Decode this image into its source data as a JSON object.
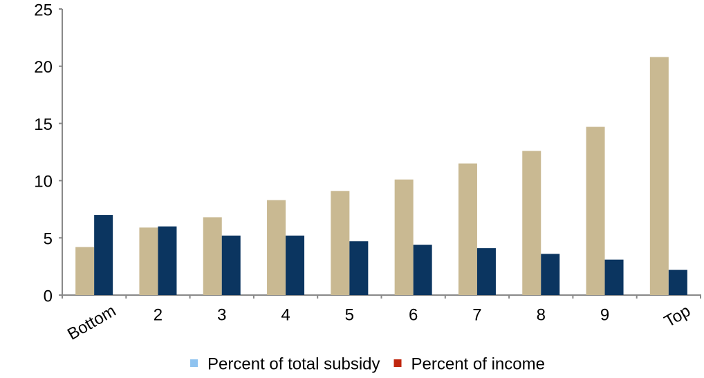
{
  "chart_data": {
    "type": "bar",
    "categories": [
      "Bottom",
      "2",
      "3",
      "4",
      "5",
      "6",
      "7",
      "8",
      "9",
      "Top"
    ],
    "series": [
      {
        "name": "Percent of total subsidy",
        "color": "#c9b992",
        "legend_color": "#8fc3f0",
        "values": [
          4.2,
          5.9,
          6.8,
          8.3,
          9.1,
          10.1,
          11.5,
          12.6,
          14.7,
          20.8
        ]
      },
      {
        "name": "Percent of income",
        "color": "#0b3560",
        "legend_color": "#c0260e",
        "values": [
          7.0,
          6.0,
          5.2,
          5.2,
          4.7,
          4.4,
          4.1,
          3.6,
          3.1,
          2.2
        ]
      }
    ],
    "ylim": [
      0,
      25
    ],
    "yticks": [
      0,
      5,
      10,
      15,
      20,
      25
    ],
    "grid": false,
    "legend": "bottom"
  }
}
